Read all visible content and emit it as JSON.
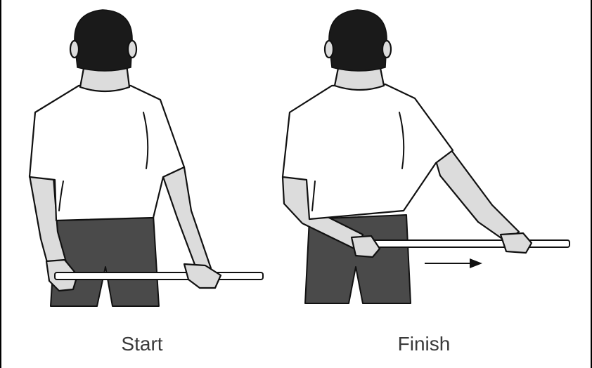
{
  "captions": {
    "start": "Start",
    "finish": "Finish"
  },
  "colors": {
    "skin": "#dcdcdc",
    "shorts": "#4a4a4a",
    "hair": "#1a1a1a",
    "shirt": "#ffffff",
    "outline": "#111111",
    "caption_text": "#3a3a3a"
  },
  "icons": {
    "direction_arrow": "right-arrow-icon"
  }
}
